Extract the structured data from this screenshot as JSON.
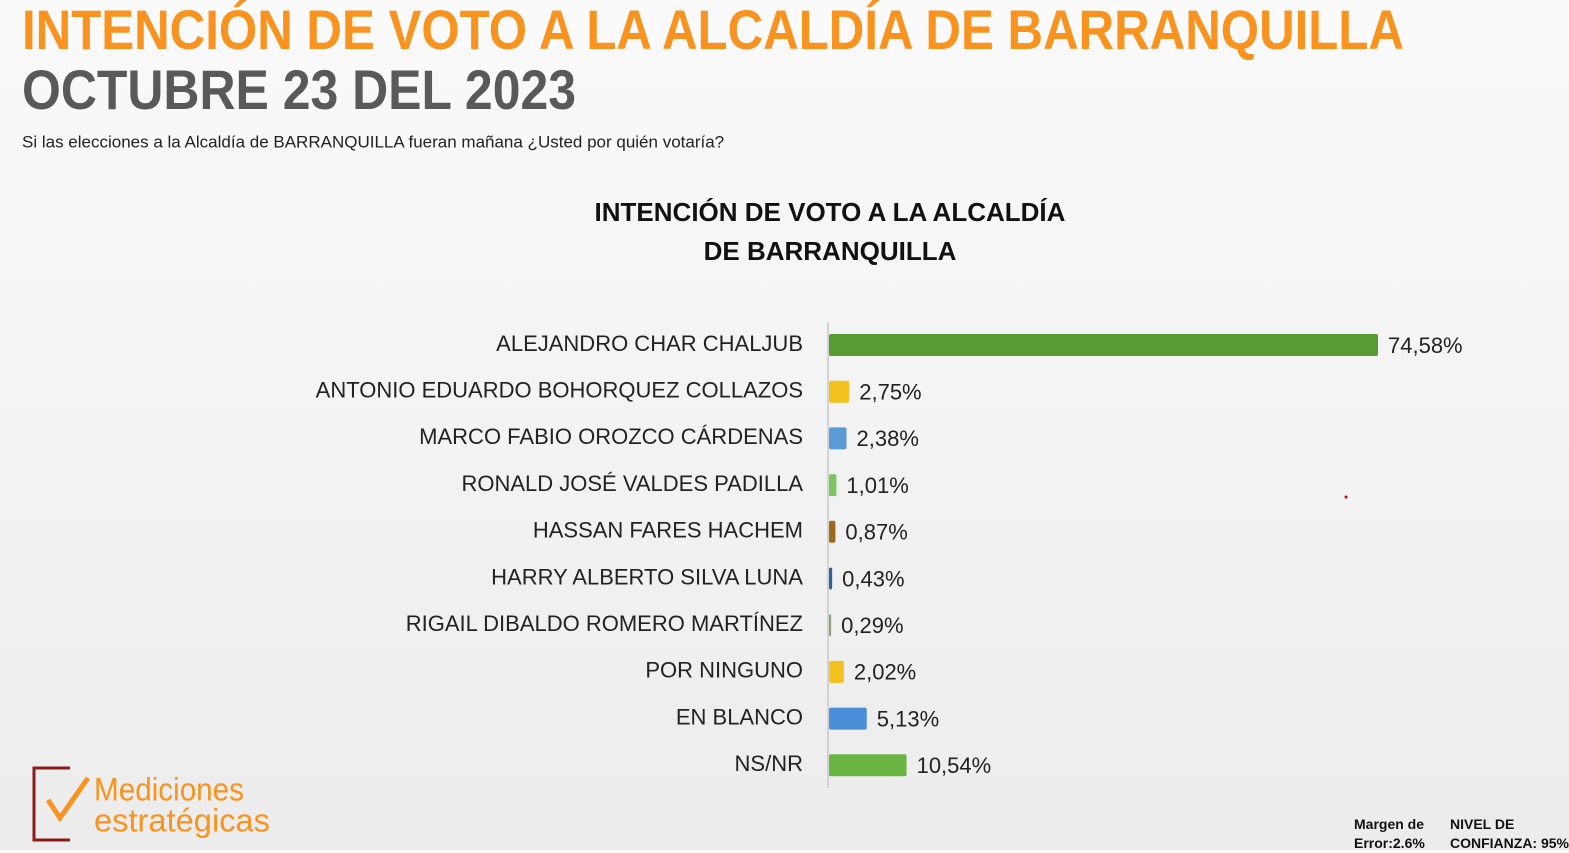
{
  "header": {
    "title": "INTENCIÓN DE VOTO A LA ALCALDÍA DE BARRANQUILLA",
    "date": "OCTUBRE 23 DEL 2023",
    "question": "Si las elecciones a la  Alcaldía de BARRANQUILLA fueran mañana ¿Usted por quién votaría?"
  },
  "chart_data": {
    "type": "bar",
    "orientation": "horizontal",
    "title": [
      "INTENCIÓN DE VOTO A LA ALCALDÍA",
      "DE BARRANQUILLA"
    ],
    "categories": [
      "ALEJANDRO CHAR CHALJUB",
      "ANTONIO EDUARDO BOHORQUEZ COLLAZOS",
      "MARCO FABIO OROZCO CÁRDENAS",
      "RONALD JOSÉ VALDES PADILLA",
      "HASSAN FARES HACHEM",
      "HARRY ALBERTO SILVA LUNA",
      "RIGAIL DIBALDO ROMERO MARTÍNEZ",
      "POR NINGUNO",
      "EN BLANCO",
      "NS/NR"
    ],
    "values": [
      74.58,
      2.75,
      2.38,
      1.01,
      0.87,
      0.43,
      0.29,
      2.02,
      5.13,
      10.54
    ],
    "value_labels": [
      "74,58%",
      "2,75%",
      "2,38%",
      "1,01%",
      "0,87%",
      "0,43%",
      "0,29%",
      "2,02%",
      "5,13%",
      "10,54%"
    ],
    "colors": [
      "#5a9a32",
      "#f4c21f",
      "#5b9bd5",
      "#7dc462",
      "#9a6b1c",
      "#2f5f9e",
      "#8aa07a",
      "#f4c21f",
      "#4a90d9",
      "#6ab443"
    ]
  },
  "logo": {
    "line1": "Mediciones",
    "line2": "estratégicas"
  },
  "footer": {
    "margin": "Margen de Error:2.6%",
    "confidence": "NIVEL DE CONFIANZA: 95%"
  }
}
